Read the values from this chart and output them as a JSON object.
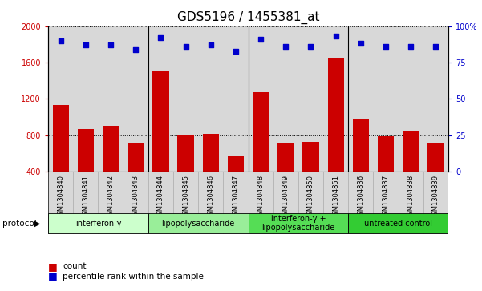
{
  "title": "GDS5196 / 1455381_at",
  "samples": [
    "GSM1304840",
    "GSM1304841",
    "GSM1304842",
    "GSM1304843",
    "GSM1304844",
    "GSM1304845",
    "GSM1304846",
    "GSM1304847",
    "GSM1304848",
    "GSM1304849",
    "GSM1304850",
    "GSM1304851",
    "GSM1304836",
    "GSM1304837",
    "GSM1304838",
    "GSM1304839"
  ],
  "counts": [
    1130,
    870,
    900,
    710,
    1510,
    810,
    820,
    570,
    1270,
    710,
    730,
    1650,
    980,
    790,
    855,
    710
  ],
  "percentile_ranks": [
    90,
    87,
    87,
    84,
    92,
    86,
    87,
    83,
    91,
    86,
    86,
    93,
    88,
    86,
    86,
    86
  ],
  "groups": [
    {
      "label": "interferon-γ",
      "start": 0,
      "end": 3,
      "color": "#ccffcc"
    },
    {
      "label": "lipopolysaccharide",
      "start": 4,
      "end": 7,
      "color": "#99ee99"
    },
    {
      "label": "interferon-γ +\nlipopolysaccharide",
      "start": 8,
      "end": 11,
      "color": "#55dd55"
    },
    {
      "label": "untreated control",
      "start": 12,
      "end": 15,
      "color": "#33cc33"
    }
  ],
  "ylim_left": [
    400,
    2000
  ],
  "ylim_right": [
    0,
    100
  ],
  "yticks_left": [
    400,
    800,
    1200,
    1600,
    2000
  ],
  "yticks_right": [
    0,
    25,
    50,
    75,
    100
  ],
  "bar_color": "#cc0000",
  "dot_color": "#0000cc",
  "plot_bg_color": "#d8d8d8",
  "protocol_label": "protocol",
  "legend_count": "count",
  "legend_pct": "percentile rank within the sample",
  "title_fontsize": 11,
  "tick_fontsize": 7,
  "group_fontsize": 8,
  "group_colors": [
    "#ccffcc",
    "#99ee99",
    "#55dd55",
    "#33cc33"
  ],
  "group_boundaries": [
    3.5,
    7.5,
    11.5
  ]
}
